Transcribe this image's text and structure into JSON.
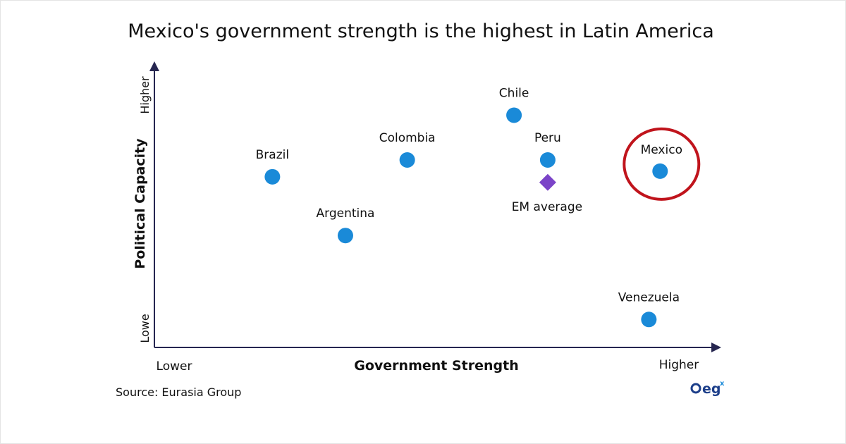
{
  "chart_data": {
    "type": "scatter",
    "title": "Mexico's government strength is the highest in Latin America",
    "xlabel": "Government Strength",
    "ylabel": "Political Capacity",
    "x_low_label": "Lower",
    "x_high_label": "Higher",
    "y_low_label": "Lowe",
    "y_high_label": "Higher",
    "xlim": [
      0,
      10
    ],
    "ylim": [
      0,
      10
    ],
    "grid": false,
    "points": [
      {
        "label": "Brazil",
        "x": 2.1,
        "y": 6.1,
        "marker": "circle"
      },
      {
        "label": "Argentina",
        "x": 3.4,
        "y": 4.0,
        "marker": "circle"
      },
      {
        "label": "Colombia",
        "x": 4.5,
        "y": 6.7,
        "marker": "circle"
      },
      {
        "label": "Chile",
        "x": 6.4,
        "y": 8.3,
        "marker": "circle"
      },
      {
        "label": "Peru",
        "x": 7.0,
        "y": 6.7,
        "marker": "circle"
      },
      {
        "label": "EM average",
        "x": 7.0,
        "y": 5.9,
        "marker": "diamond"
      },
      {
        "label": "Mexico",
        "x": 9.0,
        "y": 6.3,
        "marker": "circle",
        "highlighted": true
      },
      {
        "label": "Venezuela",
        "x": 8.8,
        "y": 1.0,
        "marker": "circle"
      }
    ],
    "colors": {
      "point": "#1a8ad8",
      "average": "#7b44c8",
      "highlight": "#c0141c",
      "axis": "#262650"
    }
  },
  "source": "Source: Eurasia Group",
  "logo_text": "egx"
}
